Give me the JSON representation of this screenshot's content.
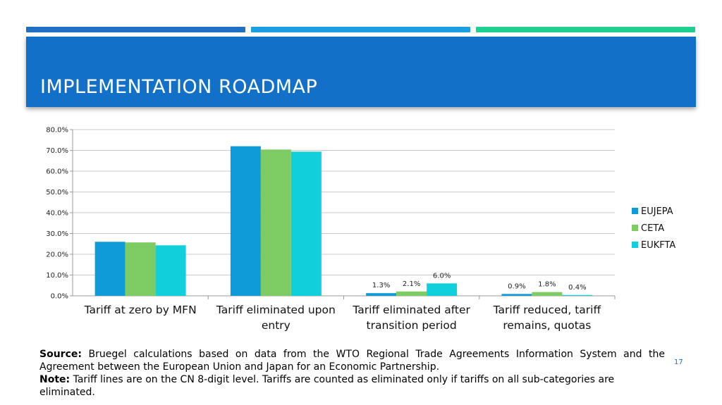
{
  "slide": {
    "title": "IMPLEMENTATION ROADMAP",
    "accent_colors": [
      "#1f6fc5",
      "#1b9fe0",
      "#1fcf90"
    ],
    "header_color": "#1370c8",
    "page_number": "17"
  },
  "footer": {
    "source_label": "Source:",
    "source_text": "Bruegel calculations based on data from the WTO  Regional Trade Agreements Information System and the Agreement between the European Union and Japan for an Economic Partnership.",
    "note_label": "Note:",
    "note_text": "Tariff lines are on the CN 8-digit level. Tariffs are counted as eliminated only if tariffs on all sub-categories are eliminated."
  },
  "chart_data": {
    "type": "bar",
    "categories": [
      [
        "Tariff at zero by MFN"
      ],
      [
        "Tariff eliminated upon",
        "entry"
      ],
      [
        "Tariff eliminated after",
        "transition period"
      ],
      [
        "Tariff reduced, tariff",
        "remains, quotas"
      ]
    ],
    "series": [
      {
        "name": "EUJEPA",
        "color": "#0f9ad8",
        "values": [
          26.0,
          72.0,
          1.3,
          0.9
        ],
        "labels": [
          "",
          "",
          "1.3%",
          "0.9%"
        ]
      },
      {
        "name": "CETA",
        "color": "#7ccc63",
        "values": [
          25.7,
          70.4,
          2.1,
          1.8
        ],
        "labels": [
          "",
          "",
          "2.1%",
          "1.8%"
        ]
      },
      {
        "name": "EUKFTA",
        "color": "#12cfdc",
        "values": [
          24.3,
          69.4,
          6.0,
          0.4
        ],
        "labels": [
          "",
          "",
          "6.0%",
          "0.4%"
        ]
      }
    ],
    "y_ticks": [
      "0.0%",
      "10.0%",
      "20.0%",
      "30.0%",
      "40.0%",
      "50.0%",
      "60.0%",
      "70.0%",
      "80.0%"
    ],
    "ylim": [
      0,
      80
    ],
    "grid": true,
    "legend_position": "right"
  }
}
